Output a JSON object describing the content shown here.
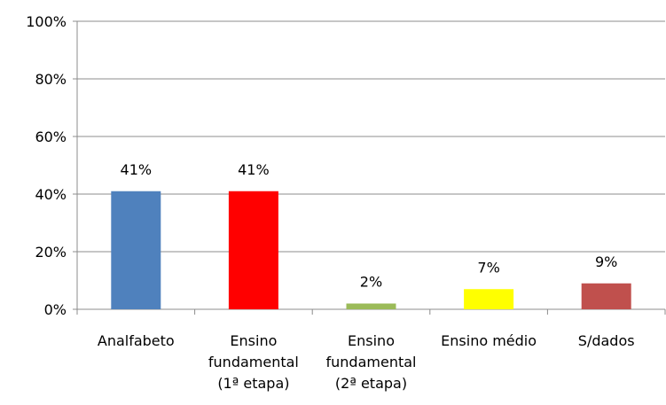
{
  "chart_data": {
    "type": "bar",
    "title": "",
    "xlabel": "",
    "ylabel": "",
    "ylim": [
      0,
      100
    ],
    "y_ticks": [
      "0%",
      "20%",
      "40%",
      "60%",
      "80%",
      "100%"
    ],
    "y_tick_values": [
      0,
      20,
      40,
      60,
      80,
      100
    ],
    "grid": true,
    "legend": "none",
    "categories": [
      [
        "Analfabeto"
      ],
      [
        "Ensino",
        "fundamental",
        "(1ª etapa)"
      ],
      [
        "Ensino",
        "fundamental",
        "(2ª etapa)"
      ],
      [
        "Ensino médio"
      ],
      [
        "S/dados"
      ]
    ],
    "values": [
      41,
      41,
      2,
      7,
      9
    ],
    "data_labels": [
      "41%",
      "41%",
      "2%",
      "7%",
      "9%"
    ],
    "colors": [
      "#4f81bd",
      "#ff0000",
      "#9bbb59",
      "#ffff00",
      "#c0504d"
    ]
  }
}
